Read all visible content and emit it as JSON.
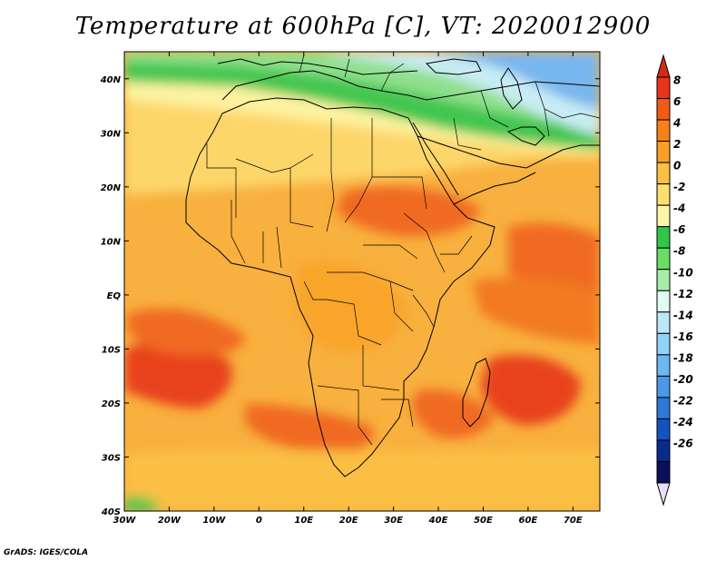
{
  "title": "Temperature at 600hPa [C], VT: 2020012900",
  "credit": "GrADS: IGES/COLA",
  "map": {
    "lon_labels": [
      "30W",
      "20W",
      "10W",
      "0",
      "10E",
      "20E",
      "30E",
      "40E",
      "50E",
      "60E",
      "70E"
    ],
    "lat_labels": [
      "40N",
      "30N",
      "20N",
      "10N",
      "EQ",
      "10S",
      "20S",
      "30S",
      "40S"
    ],
    "lon_range": [
      -30,
      76
    ],
    "lat_range": [
      -40,
      45
    ],
    "field": "temperature",
    "level": "600hPa",
    "units": "C"
  },
  "colorbar": {
    "labels": [
      "8",
      "6",
      "4",
      "2",
      "0",
      "-2",
      "-4",
      "-6",
      "-8",
      "-10",
      "-12",
      "-14",
      "-16",
      "-18",
      "-20",
      "-22",
      "-24",
      "-26"
    ],
    "colors": [
      "#e8341a",
      "#f25b16",
      "#f88018",
      "#f9a024",
      "#fbbf45",
      "#fde06e",
      "#fdf6a7",
      "#32c74a",
      "#6bdd67",
      "#a7ecaa",
      "#e2fbf2",
      "#bde6f9",
      "#92d2f6",
      "#6cb8f0",
      "#4b98e6",
      "#2e78d8",
      "#1552c1",
      "#0b2b8c",
      "#0c0f5a"
    ],
    "top_triangle_color": "#d42a12",
    "bottom_triangle_color": "#e5e0f7"
  },
  "palette": {
    "ocean_mid": "#f8b03e",
    "land_mid": "#f9ac36",
    "warm_core": "#f06a20",
    "hot_core": "#e8431b",
    "subtropic_yellow": "#fdd66a",
    "north_green": "#43c650",
    "north_blue": "#78b6ef"
  }
}
